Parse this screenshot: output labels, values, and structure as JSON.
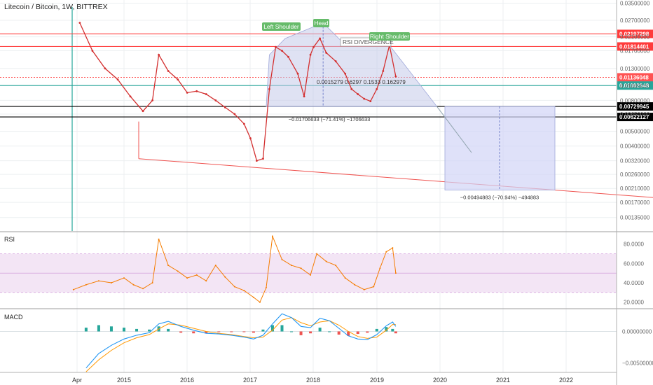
{
  "header": {
    "title": "Litecoin / Bitcoin, 1W, BITTREX"
  },
  "panes": {
    "rsi_label": "RSI",
    "macd_label": "MACD"
  },
  "colors": {
    "price": "#d32f2f",
    "price_early": "#9e9e9e",
    "resistance": "#ff3b3b",
    "support": "#000000",
    "current": "#ff5252",
    "green_line": "#26a69a",
    "pattern_fill": "#c5cae9",
    "projection_fill": "#d1d4f6",
    "rsi_line": "#f57c00",
    "rsi_band": "#f3e5f5",
    "macd_line": "#2196f3",
    "signal_line": "#ff9800",
    "hist_up": "#26a69a",
    "hist_down": "#ef5350",
    "trend": "#ef5350",
    "gridline": "#eceff1"
  },
  "chart_data": [
    {
      "type": "line",
      "name": "price",
      "x_ticks": [
        "Apr",
        "2015",
        "2016",
        "2017",
        "2018",
        "2019",
        "2020",
        "2021",
        "2022"
      ],
      "y_ticks": [
        "0.03500000",
        "0.02700000",
        "0.02100000",
        "0.01700000",
        "0.01300000",
        "0.01000000",
        "0.00800000",
        "0.00650000",
        "0.00500000",
        "0.00400000",
        "0.00320000",
        "0.00260000",
        "0.00210000",
        "0.00170000",
        "0.00135000"
      ],
      "y_log": true,
      "ylim": [
        0.0011,
        0.036
      ],
      "x": [
        2014.3,
        2014.5,
        2014.7,
        2014.9,
        2015.1,
        2015.3,
        2015.45,
        2015.55,
        2015.7,
        2015.85,
        2016.0,
        2016.15,
        2016.3,
        2016.45,
        2016.6,
        2016.75,
        2016.9,
        2017.0,
        2017.1,
        2017.2,
        2017.3,
        2017.4,
        2017.5,
        2017.6,
        2017.75,
        2017.85,
        2017.95,
        2018.0,
        2018.1,
        2018.2,
        2018.35,
        2018.5,
        2018.6,
        2018.7,
        2018.8,
        2018.9,
        2019.0,
        2019.1,
        2019.2,
        2019.3
      ],
      "y": [
        0.026,
        0.017,
        0.013,
        0.011,
        0.0085,
        0.0068,
        0.008,
        0.016,
        0.0125,
        0.011,
        0.009,
        0.0092,
        0.0088,
        0.008,
        0.0072,
        0.0065,
        0.0056,
        0.0045,
        0.0032,
        0.0033,
        0.0095,
        0.018,
        0.017,
        0.0155,
        0.012,
        0.0085,
        0.016,
        0.018,
        0.0205,
        0.0165,
        0.0145,
        0.012,
        0.0095,
        0.0088,
        0.0082,
        0.0079,
        0.0095,
        0.0125,
        0.0185,
        0.0115
      ],
      "price_labels": [
        {
          "value": 0.02197298,
          "label": "0.02197298",
          "color": "#ff3b3b"
        },
        {
          "value": 0.01814401,
          "label": "0.01814401",
          "color": "#ff3b3b"
        },
        {
          "value": 0.01136048,
          "label": "0.01136048",
          "color": "#ff5252"
        },
        {
          "value": 0.01002648,
          "label": "0.01002648",
          "color": "#26a69a"
        },
        {
          "value": 0.00729945,
          "label": "0.00729945",
          "color": "#000000"
        },
        {
          "value": 0.00622127,
          "label": "0.00622127",
          "color": "#000000"
        }
      ],
      "annotations": {
        "left_shoulder": "Left Shoulder",
        "head": "Head",
        "right_shoulder": "Right Shoulder",
        "rsi_divergence": "RSI DIVERGENCE",
        "measure_pattern": "−0.01706633 (−71.41%) −1706633",
        "measure_projection": "−0.00494883 (−70.94%) −494883",
        "overlap_text": "0.0015279 0.6297 0.1533 0.162979"
      }
    },
    {
      "type": "line",
      "name": "RSI",
      "y_ticks": [
        "80.0000",
        "60.0000",
        "40.0000",
        "20.0000"
      ],
      "ylim": [
        14,
        92
      ],
      "band": [
        30,
        70
      ],
      "x": [
        2014.2,
        2014.4,
        2014.6,
        2014.8,
        2015.0,
        2015.15,
        2015.3,
        2015.45,
        2015.55,
        2015.7,
        2015.85,
        2016.0,
        2016.15,
        2016.3,
        2016.45,
        2016.6,
        2016.75,
        2016.9,
        2017.05,
        2017.15,
        2017.25,
        2017.35,
        2017.5,
        2017.65,
        2017.8,
        2017.95,
        2018.05,
        2018.2,
        2018.35,
        2018.5,
        2018.65,
        2018.8,
        2018.95,
        2019.05,
        2019.15,
        2019.25,
        2019.3
      ],
      "y": [
        33,
        38,
        42,
        40,
        45,
        38,
        34,
        40,
        85,
        58,
        52,
        45,
        48,
        42,
        58,
        46,
        36,
        32,
        25,
        20,
        35,
        88,
        64,
        58,
        55,
        48,
        70,
        62,
        58,
        45,
        38,
        33,
        36,
        55,
        72,
        76,
        50
      ]
    },
    {
      "type": "line",
      "name": "MACD",
      "y_ticks": [
        "0.00000000",
        "−0.00500000"
      ],
      "ylim": [
        -0.0065,
        0.0035
      ],
      "x": [
        2014.4,
        2014.6,
        2014.8,
        2015.0,
        2015.2,
        2015.4,
        2015.55,
        2015.7,
        2015.9,
        2016.1,
        2016.3,
        2016.5,
        2016.7,
        2016.9,
        2017.05,
        2017.2,
        2017.35,
        2017.5,
        2017.65,
        2017.8,
        2017.95,
        2018.1,
        2018.25,
        2018.4,
        2018.55,
        2018.7,
        2018.85,
        2019.0,
        2019.15,
        2019.25,
        2019.3
      ],
      "macd": [
        -0.0058,
        -0.0035,
        -0.0022,
        -0.0012,
        -0.0006,
        -0.0002,
        0.0012,
        0.0016,
        0.0008,
        0.0002,
        -0.0003,
        -0.0004,
        -0.0006,
        -0.0009,
        -0.0012,
        -0.0006,
        0.0012,
        0.0028,
        0.0022,
        0.0008,
        0.0006,
        0.0021,
        0.0017,
        0.0005,
        -0.0007,
        -0.0012,
        -0.0013,
        -0.0005,
        0.0009,
        0.0015,
        0.0008
      ],
      "signal": [
        -0.0064,
        -0.0045,
        -0.003,
        -0.0018,
        -0.001,
        -0.0005,
        0.0004,
        0.0012,
        0.001,
        0.0005,
        0.0,
        -0.0003,
        -0.0005,
        -0.0008,
        -0.001,
        -0.0009,
        0.0002,
        0.0018,
        0.0022,
        0.0014,
        0.0009,
        0.0015,
        0.0017,
        0.001,
        0.0,
        -0.0008,
        -0.0011,
        -0.0009,
        0.0002,
        0.0011,
        0.0011
      ]
    }
  ]
}
